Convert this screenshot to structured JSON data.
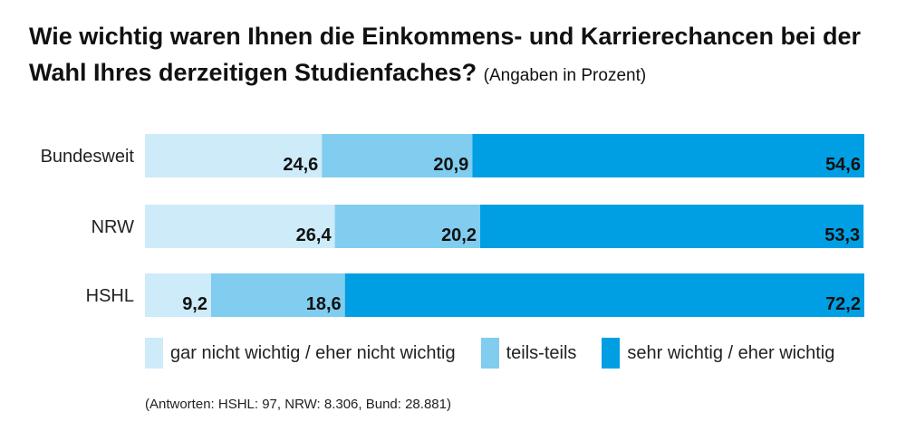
{
  "title": {
    "main": "Wie wichtig waren Ihnen die Einkommens- und Karrierechancen bei der Wahl Ihres derzeitigen Studienfaches?",
    "note": "(Angaben in Prozent)"
  },
  "colors": {
    "series_0": "#cdebf9",
    "series_1": "#80cdf0",
    "series_2": "#009fe3"
  },
  "chart_data": {
    "type": "bar",
    "orientation": "horizontal",
    "stacked": true,
    "categories": [
      "Bundesweit",
      "NRW",
      "HSHL"
    ],
    "series": [
      {
        "name": "gar nicht wichtig / eher nicht wichtig",
        "values": [
          24.6,
          26.4,
          9.2
        ],
        "labels": [
          "24,6",
          "26,4",
          "9,2"
        ]
      },
      {
        "name": "teils-teils",
        "values": [
          20.9,
          20.2,
          18.6
        ],
        "labels": [
          "20,9",
          "20,2",
          "18,6"
        ]
      },
      {
        "name": "sehr wichtig / eher wichtig",
        "values": [
          54.6,
          53.3,
          72.2
        ],
        "labels": [
          "54,6",
          "53,3",
          "72,2"
        ]
      }
    ],
    "xlim": [
      0,
      100
    ],
    "grid": false,
    "legend": "bottom"
  },
  "footnote": "(Antworten: HSHL: 97, NRW: 8.306, Bund: 28.881)"
}
